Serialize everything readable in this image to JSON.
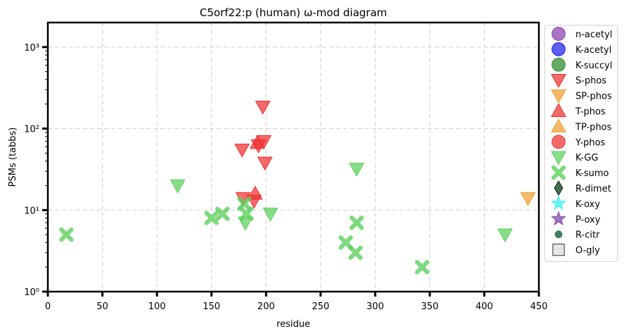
{
  "chart_data": {
    "type": "scatter",
    "title": "C5orf22:p (human) ω-mod diagram",
    "xlabel": "residue",
    "ylabel": "PSMs (tabbs)",
    "xlim": [
      0,
      450
    ],
    "ylim": [
      1,
      2000
    ],
    "yscale": "log",
    "grid": true,
    "legend_position": "right-outside",
    "x_ticks": [
      {
        "value": 0,
        "label": "0"
      },
      {
        "value": 50,
        "label": "50"
      },
      {
        "value": 100,
        "label": "100"
      },
      {
        "value": 150,
        "label": "150"
      },
      {
        "value": 200,
        "label": "200"
      },
      {
        "value": 250,
        "label": "250"
      },
      {
        "value": 300,
        "label": "300"
      },
      {
        "value": 350,
        "label": "350"
      },
      {
        "value": 400,
        "label": "400"
      },
      {
        "value": 450,
        "label": "450"
      }
    ],
    "y_ticks": [
      {
        "value": 1,
        "label": "10⁰"
      },
      {
        "value": 10,
        "label": "10¹"
      },
      {
        "value": 100,
        "label": "10²"
      },
      {
        "value": 1000,
        "label": "10³"
      }
    ],
    "series": [
      {
        "name": "n-acetyl",
        "marker": "circle",
        "color": "#8b3fb0",
        "points": []
      },
      {
        "name": "K-acetyl",
        "marker": "circle",
        "color": "#2020ee",
        "points": []
      },
      {
        "name": "K-succyl",
        "marker": "circle",
        "color": "#2a8a2a",
        "points": []
      },
      {
        "name": "S-phos",
        "marker": "triangle-down",
        "color": "#f03030",
        "points": [
          [
            197,
            185
          ],
          [
            178,
            55
          ],
          [
            198,
            70
          ],
          [
            193,
            62
          ],
          [
            199,
            38
          ],
          [
            179,
            14
          ],
          [
            189,
            13
          ]
        ]
      },
      {
        "name": "SP-phos",
        "marker": "triangle-down",
        "color": "#f0a030",
        "points": [
          [
            440,
            14
          ]
        ]
      },
      {
        "name": "T-phos",
        "marker": "triangle-up",
        "color": "#f03030",
        "points": [
          [
            192,
            67
          ],
          [
            190,
            16
          ]
        ]
      },
      {
        "name": "TP-phos",
        "marker": "triangle-up",
        "color": "#f0a030",
        "points": []
      },
      {
        "name": "Y-phos",
        "marker": "circle",
        "color": "#f03030",
        "points": []
      },
      {
        "name": "K-GG",
        "marker": "triangle-down",
        "color": "#5cd05c",
        "points": [
          [
            119,
            20
          ],
          [
            283,
            32
          ],
          [
            204,
            9
          ],
          [
            181,
            7
          ],
          [
            419,
            5
          ]
        ]
      },
      {
        "name": "K-sumo",
        "marker": "x",
        "color": "#5cd05c",
        "points": [
          [
            17,
            5
          ],
          [
            150,
            8
          ],
          [
            160,
            9
          ],
          [
            180,
            12
          ],
          [
            182,
            9
          ],
          [
            273,
            4
          ],
          [
            283,
            7
          ],
          [
            282,
            3
          ],
          [
            343,
            2
          ]
        ]
      },
      {
        "name": "R-dimet",
        "marker": "diamond",
        "color": "#2f5f3f",
        "points": []
      },
      {
        "name": "K-oxy",
        "marker": "star",
        "color": "#30f0f0",
        "points": []
      },
      {
        "name": "P-oxy",
        "marker": "star",
        "color": "#7a3fa8",
        "points": []
      },
      {
        "name": "R-citr",
        "marker": "circle-small",
        "color": "#2f6f4f",
        "points": []
      },
      {
        "name": "O-gly",
        "marker": "square",
        "color": "#e6e6e6",
        "points": []
      }
    ]
  }
}
